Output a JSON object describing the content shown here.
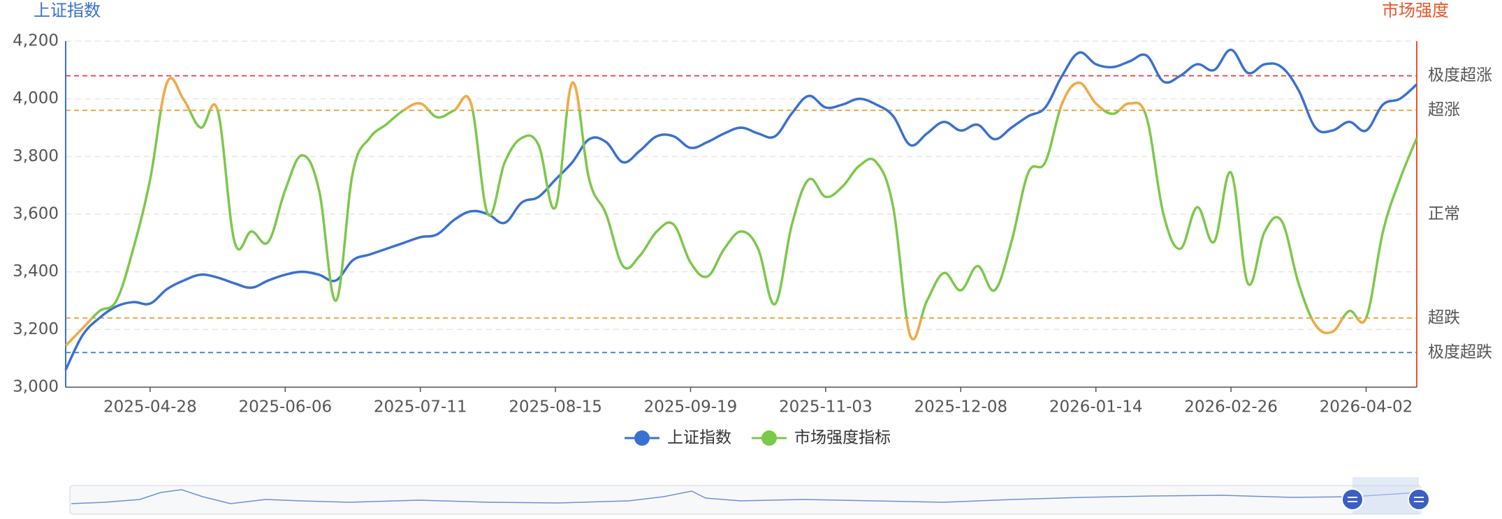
{
  "chart_data": {
    "type": "line",
    "y_axis_label": "上证指数",
    "y_axis_color": "#3a70d0",
    "y2_axis_label": "市场强度",
    "y2_axis_color": "#e8562a",
    "categories": [
      null,
      null,
      null,
      null,
      null,
      "2025-04-28",
      null,
      null,
      null,
      null,
      null,
      null,
      null,
      "2025-06-06",
      null,
      null,
      null,
      null,
      null,
      null,
      null,
      "2025-07-11",
      null,
      null,
      null,
      null,
      null,
      null,
      null,
      "2025-08-15",
      null,
      null,
      null,
      null,
      null,
      null,
      null,
      "2025-09-19",
      null,
      null,
      null,
      null,
      null,
      null,
      null,
      "2025-11-03",
      null,
      null,
      null,
      null,
      null,
      null,
      null,
      "2025-12-08",
      null,
      null,
      null,
      null,
      null,
      null,
      null,
      "2026-01-14",
      null,
      null,
      null,
      null,
      null,
      null,
      null,
      "2026-02-26",
      null,
      null,
      null,
      null,
      null,
      null,
      null,
      "2026-04-02",
      null,
      null,
      null
    ],
    "series": [
      {
        "name": "上证指数",
        "color": "#3a70d0",
        "values": [
          3060,
          3180,
          3240,
          3280,
          3295,
          3290,
          3340,
          3370,
          3390,
          3380,
          3360,
          3345,
          3370,
          3390,
          3400,
          3390,
          3370,
          3440,
          3460,
          3480,
          3500,
          3520,
          3530,
          3580,
          3610,
          3600,
          3570,
          3640,
          3660,
          3720,
          3780,
          3860,
          3850,
          3780,
          3820,
          3870,
          3870,
          3830,
          3850,
          3880,
          3900,
          3880,
          3870,
          3950,
          4010,
          3970,
          3980,
          4000,
          3980,
          3940,
          3840,
          3880,
          3920,
          3890,
          3910,
          3860,
          3900,
          3940,
          3970,
          4080,
          4160,
          4120,
          4110,
          4130,
          4150,
          4060,
          4080,
          4120,
          4100,
          4170,
          4090,
          4120,
          4110,
          4030,
          3900,
          3890,
          3920,
          3890,
          3980,
          4000,
          4050
        ]
      },
      {
        "name": "市场强度指标",
        "color": "#7cc84a",
        "axis": "y2",
        "highlight_color": "#f2a94a",
        "highlight_above": 80,
        "highlight_below": 20,
        "values": [
          12,
          17,
          22,
          25,
          40,
          60,
          88,
          83,
          75,
          80,
          42,
          45,
          42,
          57,
          67,
          57,
          25,
          62,
          72,
          76,
          80,
          82,
          78,
          80,
          82,
          50,
          65,
          72,
          70,
          52,
          88,
          60,
          50,
          35,
          38,
          45,
          47,
          36,
          32,
          40,
          45,
          40,
          24,
          47,
          60,
          55,
          58,
          64,
          65,
          52,
          15,
          25,
          33,
          28,
          35,
          28,
          42,
          62,
          65,
          82,
          88,
          82,
          79,
          82,
          78,
          50,
          40,
          52,
          42,
          62,
          30,
          45,
          48,
          30,
          18,
          16,
          22,
          20,
          45,
          60,
          72
        ]
      }
    ],
    "ylim": [
      3000,
      4200
    ],
    "yticks": [
      {
        "value": 3000,
        "label": "3,000"
      },
      {
        "value": 3200,
        "label": "3,200"
      },
      {
        "value": 3400,
        "label": "3,400"
      },
      {
        "value": 3600,
        "label": "3,600"
      },
      {
        "value": 3800,
        "label": "3,800"
      },
      {
        "value": 4000,
        "label": "4,000"
      },
      {
        "value": 4200,
        "label": "4,200"
      }
    ],
    "y2lim": [
      0,
      100
    ],
    "y2ticks": [
      {
        "value": 90,
        "label": "极度超涨",
        "color": "#e83a3a"
      },
      {
        "value": 80,
        "label": "超涨",
        "color": "#f0a030"
      },
      {
        "value": 50,
        "label": "正常"
      },
      {
        "value": 20,
        "label": "超跌",
        "color": "#f0a030"
      },
      {
        "value": 10,
        "label": "极度超跌",
        "color": "#3a70d0"
      }
    ],
    "grid": true,
    "legend": "bottom"
  }
}
